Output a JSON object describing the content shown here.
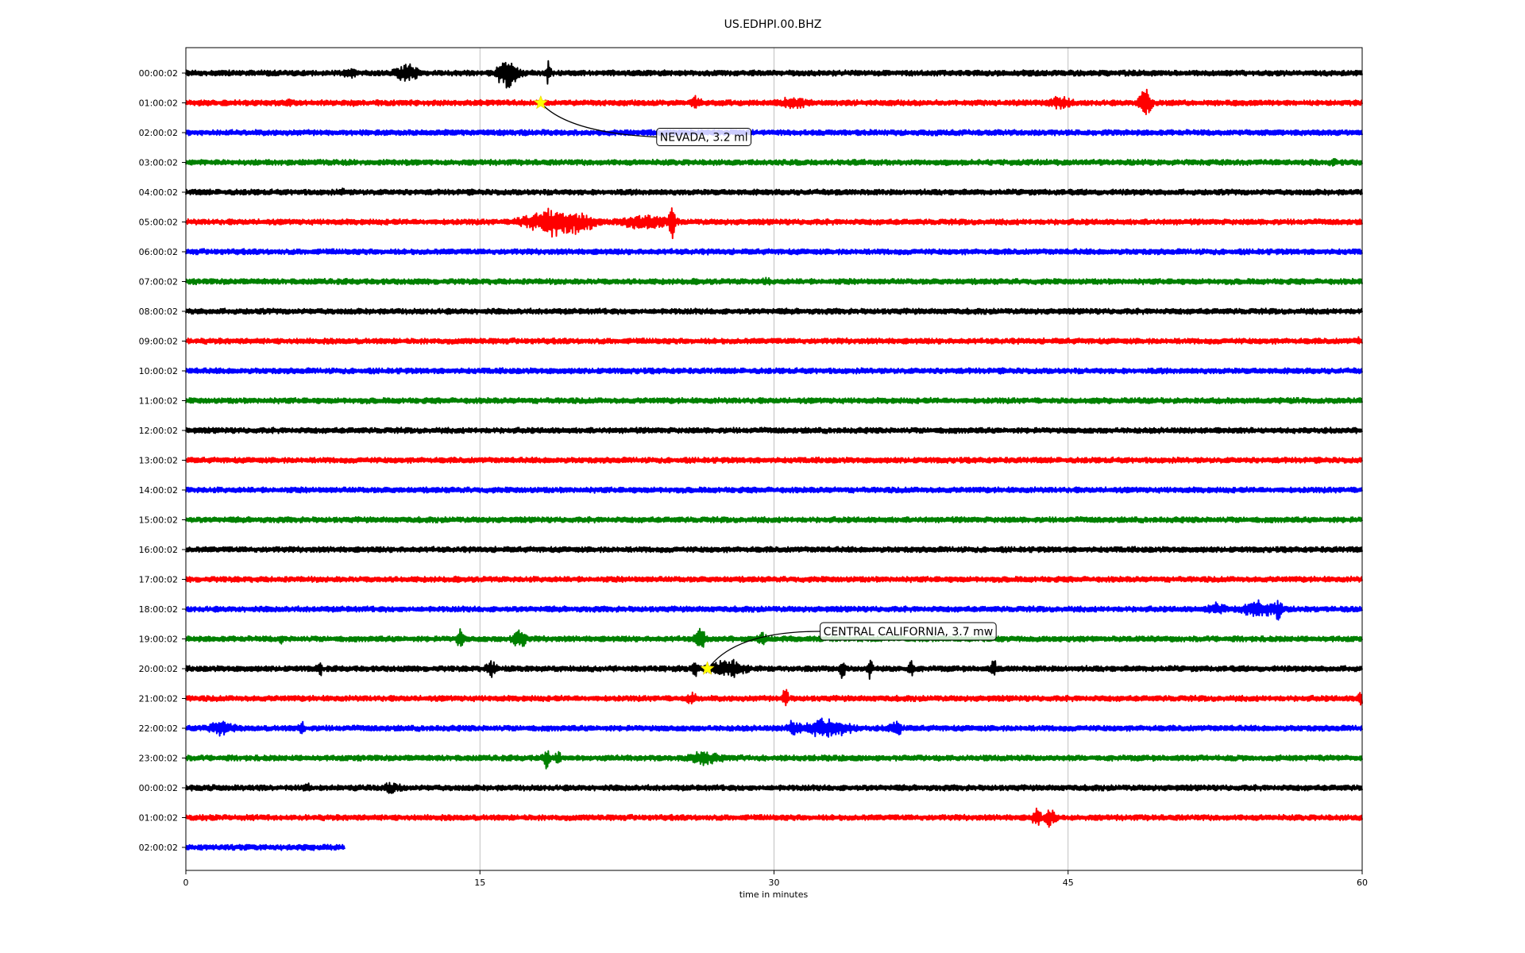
{
  "chart_data": {
    "type": "line",
    "title": "US.EDHPI.00.BHZ",
    "xlabel": "time in minutes",
    "ylabel": "",
    "xlim": [
      0,
      60
    ],
    "xticks": [
      0,
      15,
      30,
      45,
      60
    ],
    "grid": "vertical lines at x ticks",
    "colors": [
      "#000000",
      "#ff0000",
      "#0000ff",
      "#008000"
    ],
    "hour_labels": [
      "00:00:02",
      "01:00:02",
      "02:00:02",
      "03:00:02",
      "04:00:02",
      "05:00:02",
      "06:00:02",
      "07:00:02",
      "08:00:02",
      "09:00:02",
      "10:00:02",
      "11:00:02",
      "12:00:02",
      "13:00:02",
      "14:00:02",
      "15:00:02",
      "16:00:02",
      "17:00:02",
      "18:00:02",
      "19:00:02",
      "20:00:02",
      "21:00:02",
      "22:00:02",
      "23:00:02",
      "00:00:02",
      "01:00:02",
      "02:00:02"
    ],
    "series": [
      {
        "values_end_minute": 60,
        "bursts": [
          [
            8.4,
            0.5,
            5
          ],
          [
            11.3,
            0.9,
            11
          ],
          [
            16.4,
            0.7,
            24
          ],
          [
            17.0,
            0.4,
            5
          ],
          [
            18.5,
            0.2,
            16
          ]
        ]
      },
      {
        "values_end_minute": 60,
        "bursts": [
          [
            5.3,
            0.2,
            5
          ],
          [
            8.6,
            0.3,
            4
          ],
          [
            26.0,
            0.4,
            7
          ],
          [
            31.0,
            1.1,
            7
          ],
          [
            44.6,
            0.9,
            7
          ],
          [
            48.9,
            0.5,
            20
          ]
        ]
      },
      {
        "values_end_minute": 60,
        "bursts": []
      },
      {
        "values_end_minute": 60,
        "bursts": [
          [
            58.5,
            0.3,
            3
          ]
        ]
      },
      {
        "values_end_minute": 60,
        "bursts": [
          [
            8.0,
            0.3,
            3
          ]
        ]
      },
      {
        "values_end_minute": 60,
        "bursts": [
          [
            19.0,
            2.5,
            20
          ],
          [
            23.5,
            2.0,
            9
          ],
          [
            24.8,
            0.2,
            32
          ]
        ]
      },
      {
        "values_end_minute": 60,
        "bursts": []
      },
      {
        "values_end_minute": 60,
        "bursts": [
          [
            29.6,
            0.3,
            4
          ]
        ]
      },
      {
        "values_end_minute": 60,
        "bursts": []
      },
      {
        "values_end_minute": 60,
        "bursts": [
          [
            59.8,
            0.2,
            4
          ]
        ]
      },
      {
        "values_end_minute": 60,
        "bursts": []
      },
      {
        "values_end_minute": 60,
        "bursts": []
      },
      {
        "values_end_minute": 60,
        "bursts": []
      },
      {
        "values_end_minute": 60,
        "bursts": []
      },
      {
        "values_end_minute": 60,
        "bursts": []
      },
      {
        "values_end_minute": 60,
        "bursts": []
      },
      {
        "values_end_minute": 60,
        "bursts": []
      },
      {
        "values_end_minute": 60,
        "bursts": []
      },
      {
        "values_end_minute": 60,
        "bursts": [
          [
            52.6,
            0.8,
            7
          ],
          [
            54.8,
            1.5,
            10
          ],
          [
            55.7,
            0.3,
            16
          ]
        ]
      },
      {
        "values_end_minute": 60,
        "bursts": [
          [
            4.9,
            0.2,
            5
          ],
          [
            14.0,
            0.3,
            15
          ],
          [
            17.0,
            0.5,
            14
          ],
          [
            26.2,
            0.4,
            17
          ],
          [
            29.4,
            0.3,
            10
          ]
        ]
      },
      {
        "values_end_minute": 60,
        "bursts": [
          [
            6.8,
            0.2,
            13
          ],
          [
            15.6,
            0.4,
            12
          ],
          [
            26.0,
            0.2,
            12
          ],
          [
            27.6,
            1.3,
            13
          ],
          [
            33.5,
            0.2,
            14
          ],
          [
            34.9,
            0.2,
            16
          ],
          [
            37.0,
            0.2,
            13
          ],
          [
            41.2,
            0.2,
            15
          ]
        ]
      },
      {
        "values_end_minute": 60,
        "bursts": [
          [
            25.8,
            0.5,
            6
          ],
          [
            30.6,
            0.2,
            18
          ],
          [
            59.9,
            0.2,
            14
          ]
        ]
      },
      {
        "values_end_minute": 60,
        "bursts": [
          [
            1.8,
            0.9,
            10
          ],
          [
            5.9,
            0.2,
            10
          ],
          [
            31.0,
            0.5,
            12
          ],
          [
            32.8,
            1.6,
            14
          ],
          [
            36.2,
            0.5,
            9
          ]
        ]
      },
      {
        "values_end_minute": 60,
        "bursts": [
          [
            18.4,
            0.3,
            13
          ],
          [
            19.0,
            0.2,
            10
          ],
          [
            26.5,
            1.2,
            8
          ]
        ]
      },
      {
        "values_end_minute": 60,
        "bursts": [
          [
            6.2,
            0.3,
            5
          ],
          [
            10.5,
            0.7,
            6
          ]
        ]
      },
      {
        "values_end_minute": 60,
        "bursts": [
          [
            43.4,
            0.3,
            14
          ],
          [
            44.1,
            0.4,
            15
          ]
        ]
      },
      {
        "values_end_minute": 8.1,
        "bursts": []
      }
    ],
    "annotations": [
      {
        "text": "NEVADA, 3.2 ml",
        "row": 1,
        "minute": 18.1
      },
      {
        "text": "CENTRAL CALIFORNIA, 3.7 mw",
        "row": 20,
        "minute": 26.6
      }
    ]
  }
}
